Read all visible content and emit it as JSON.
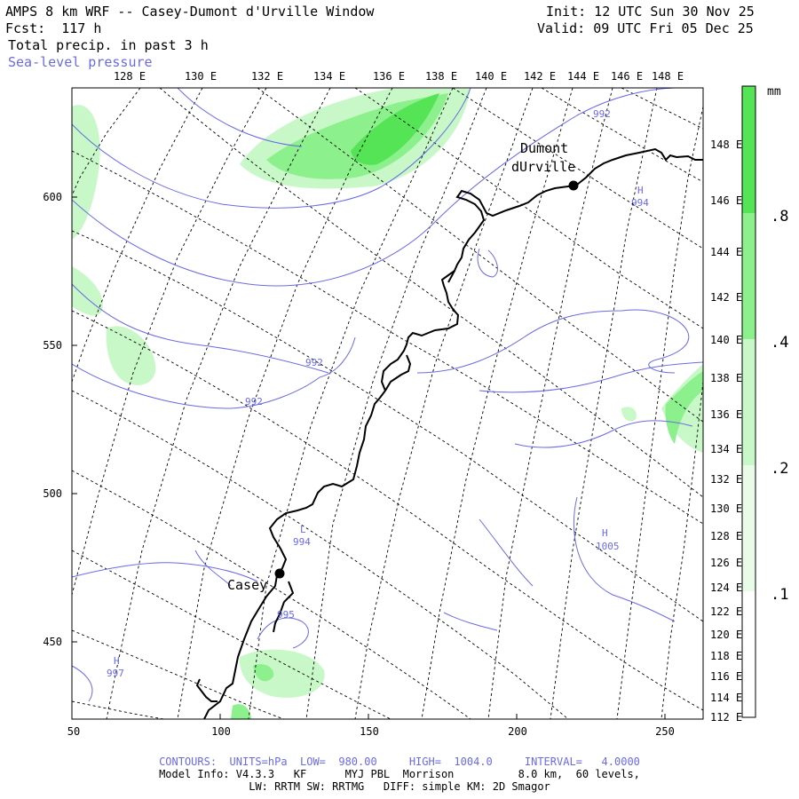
{
  "header": {
    "title": "AMPS 8 km WRF -- Casey-Dumont d'Urville Window",
    "forecast": "Fcst:  117 h",
    "field": "Total precip. in past 3 h",
    "overlay": "Sea-level pressure",
    "init": "Init: 12 UTC Sun 30 Nov 25",
    "valid": "Valid: 09 UTC Fri 05 Dec 25"
  },
  "map": {
    "top_lon_labels": [
      "128 E",
      "130 E",
      "132 E",
      "134 E",
      "136 E",
      "138 E",
      "140 E",
      "142 E",
      "144 E",
      "146 E",
      "148 E"
    ],
    "right_lon_labels": [
      "148 E",
      "146 E",
      "144 E",
      "142 E",
      "140 E",
      "138 E",
      "136 E",
      "134 E",
      "132 E",
      "130 E",
      "128 E",
      "126 E",
      "124 E",
      "122 E",
      "120 E",
      "118 E",
      "116 E",
      "114 E",
      "112 E"
    ],
    "y_axis_labels": [
      "600",
      "550",
      "500",
      "450"
    ],
    "x_axis_labels": [
      "50",
      "100",
      "150",
      "200",
      "250"
    ],
    "stations": [
      {
        "name_line1": "Dumont",
        "name_line2": "dUrville"
      },
      {
        "name_line1": "Casey",
        "name_line2": ""
      }
    ],
    "pressure_labels": [
      "992",
      "992",
      "992",
      "994",
      "1005",
      "994",
      "997",
      "995"
    ],
    "pressure_centers": [
      "H",
      "L",
      "H",
      "H"
    ]
  },
  "colorbar": {
    "unit": "mm",
    "labels": [
      ".8",
      ".4",
      ".2",
      ".1"
    ],
    "colors": [
      "#55e455",
      "#8cf08c",
      "#c8f8c8",
      "#ffffff"
    ]
  },
  "footer": {
    "contours": "CONTOURS:  UNITS=hPa  LOW=  980.00     HIGH=  1004.0     INTERVAL=   4.0000",
    "model_info": "Model Info: V4.3.3   KF      MYJ PBL  Morrison          8.0 km,  60 levels,",
    "physics": "LW: RRTM SW: RRTMG   DIFF: simple KM: 2D Smagor"
  },
  "colors": {
    "pressure": "#6a6ae6",
    "coast": "#000000",
    "grid": "#000000"
  }
}
